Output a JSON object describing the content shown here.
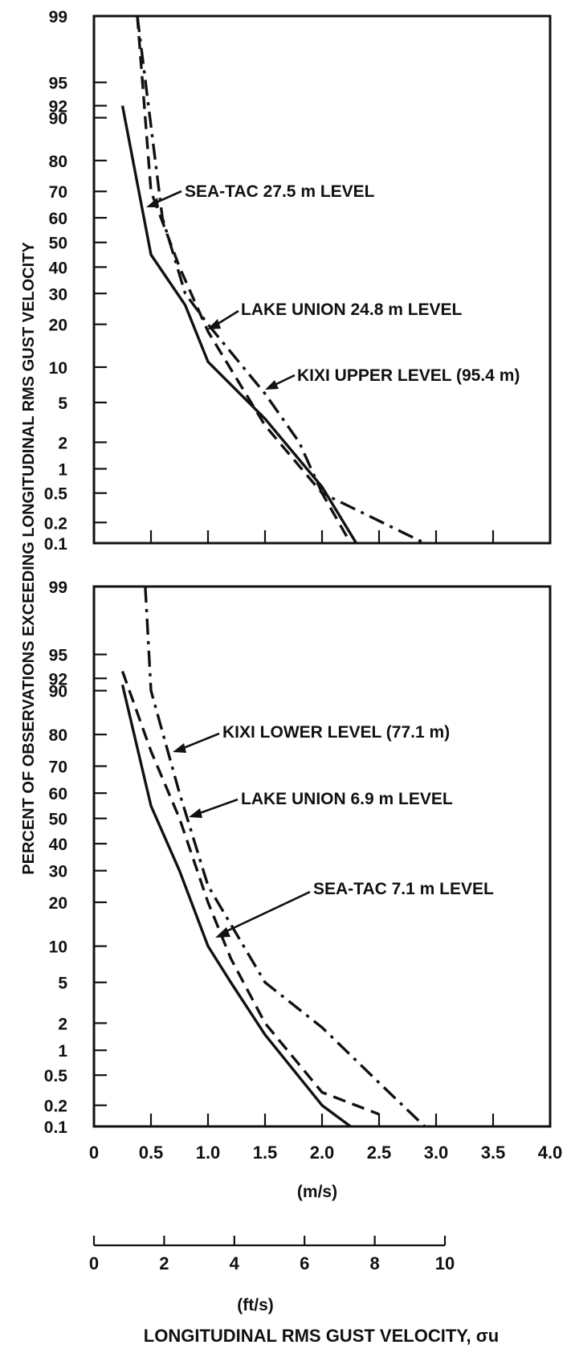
{
  "chart_data": {
    "type": "line",
    "y_scale": "probability",
    "ylabel": "PERCENT OF OBSERVATIONS EXCEEDING LONGITUDINAL RMS GUST VELOCITY",
    "xlabel": "LONGITUDINAL RMS GUST VELOCITY, σu",
    "x_unit_primary": "(m/s)",
    "x_unit_secondary": "(ft/s)",
    "xlim": [
      0,
      4.0
    ],
    "ylim": [
      0.1,
      99
    ],
    "x_tick_labels": [
      "0",
      "0.5",
      "1.0",
      "1.5",
      "2.0",
      "2.5",
      "3.0",
      "3.5",
      "4.0"
    ],
    "x_tick_values": [
      0,
      0.5,
      1.0,
      1.5,
      2.0,
      2.5,
      3.0,
      3.5,
      4.0
    ],
    "x2_tick_labels": [
      "0",
      "2",
      "4",
      "6",
      "8",
      "10"
    ],
    "x2_tick_values": [
      0,
      2,
      4,
      6,
      8,
      10
    ],
    "y_tick_labels": [
      "99",
      "95",
      "92",
      "90",
      "80",
      "70",
      "60",
      "50",
      "40",
      "30",
      "20",
      "10",
      "5",
      "2",
      "1",
      "0.5",
      "0.2",
      "0.1"
    ],
    "y_tick_values": [
      99,
      95,
      92,
      90,
      80,
      70,
      60,
      50,
      40,
      30,
      20,
      10,
      5,
      2,
      1,
      0.5,
      0.2,
      0.1
    ],
    "panels": [
      {
        "series": [
          {
            "name": "SEA-TAC 27.5 m LEVEL",
            "style": "solid",
            "x": [
              0.25,
              0.5,
              0.8,
              1.0,
              1.5,
              2.0,
              2.3
            ],
            "y": [
              92,
              45,
              26,
              11,
              3.5,
              0.6,
              0.1
            ]
          },
          {
            "name": "LAKE UNION 24.8 m LEVEL",
            "style": "dashed",
            "x": [
              0.38,
              0.5,
              0.75,
              1.0,
              1.5,
              2.0,
              2.25
            ],
            "y": [
              99,
              70,
              40,
              18,
              3,
              0.5,
              0.1
            ]
          },
          {
            "name": "KIXI UPPER LEVEL (95.4 m)",
            "style": "dashdot",
            "x": [
              0.38,
              0.6,
              0.8,
              1.0,
              1.5,
              1.8,
              2.0,
              2.9
            ],
            "y": [
              99,
              60,
              30,
              20,
              6,
              2,
              0.5,
              0.1
            ]
          }
        ]
      },
      {
        "series": [
          {
            "name": "SEA-TAC 7.1 m LEVEL",
            "style": "solid",
            "x": [
              0.25,
              0.5,
              0.75,
              1.0,
              1.2,
              1.5,
              2.0,
              2.25
            ],
            "y": [
              91,
              55,
              30,
              10,
              5,
              1.5,
              0.2,
              0.1
            ]
          },
          {
            "name": "LAKE UNION 6.9 m LEVEL",
            "style": "dashed",
            "x": [
              0.25,
              0.5,
              0.75,
              1.0,
              1.2,
              1.5,
              2.0,
              2.5
            ],
            "y": [
              93,
              75,
              50,
              20,
              8,
              2,
              0.3,
              0.15
            ]
          },
          {
            "name": "KIXI LOWER LEVEL (77.1 m)",
            "style": "dashdot",
            "x": [
              0.45,
              0.5,
              0.75,
              1.0,
              1.5,
              2.0,
              2.5,
              2.9
            ],
            "y": [
              99,
              90,
              60,
              25,
              5,
              1.8,
              0.4,
              0.1
            ]
          }
        ]
      }
    ]
  }
}
